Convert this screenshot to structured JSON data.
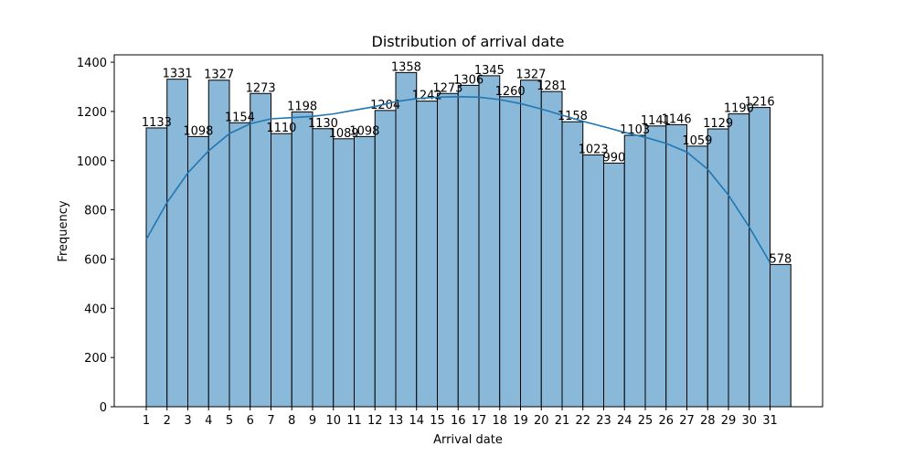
{
  "chart_data": {
    "type": "bar",
    "title": "Distribution of arrival date",
    "xlabel": "Arrival date",
    "ylabel": "Frequency",
    "ylim": [
      0,
      1430
    ],
    "y_ticks": [
      0,
      200,
      400,
      600,
      800,
      1000,
      1200,
      1400
    ],
    "categories": [
      "1",
      "2",
      "3",
      "4",
      "5",
      "6",
      "7",
      "8",
      "9",
      "10",
      "11",
      "12",
      "13",
      "14",
      "15",
      "16",
      "17",
      "18",
      "19",
      "20",
      "21",
      "22",
      "23",
      "24",
      "25",
      "26",
      "27",
      "28",
      "29",
      "30",
      "31"
    ],
    "values": [
      1133,
      1331,
      1098,
      1327,
      1154,
      1273,
      1110,
      1198,
      1130,
      1089,
      1098,
      1204,
      1358,
      1242,
      1273,
      1306,
      1345,
      1260,
      1327,
      1281,
      1158,
      1023,
      990,
      1103,
      1141,
      1146,
      1059,
      1129,
      1190,
      1216,
      578
    ],
    "value_labels": [
      "1133",
      "1331",
      "1098",
      "1327",
      "1154",
      "1273",
      "1110",
      "1198",
      "1130",
      "1089",
      "1098",
      "1204",
      "1358",
      "1242",
      "1273",
      "1306",
      "1345",
      "1260",
      "1327",
      "1281",
      "1158",
      "1023",
      "990",
      "1103",
      "1141",
      "1146",
      "1059",
      "1129",
      "1190",
      "1216",
      "578"
    ],
    "kde": {
      "x": [
        1,
        2,
        3,
        4,
        5,
        6,
        7,
        8,
        9,
        10,
        11,
        12,
        13,
        14,
        15,
        16,
        17,
        18,
        19,
        20,
        21,
        22,
        23,
        24,
        25,
        26,
        27,
        28,
        29,
        30,
        31
      ],
      "y": [
        680,
        830,
        950,
        1040,
        1110,
        1150,
        1170,
        1175,
        1180,
        1190,
        1205,
        1220,
        1240,
        1252,
        1258,
        1260,
        1258,
        1248,
        1232,
        1210,
        1185,
        1160,
        1138,
        1115,
        1095,
        1070,
        1035,
        965,
        860,
        730,
        585
      ]
    },
    "colors": {
      "bar_fill": "#8ab8d9",
      "bar_edge": "#000000",
      "kde_line": "#1f77b4"
    }
  }
}
